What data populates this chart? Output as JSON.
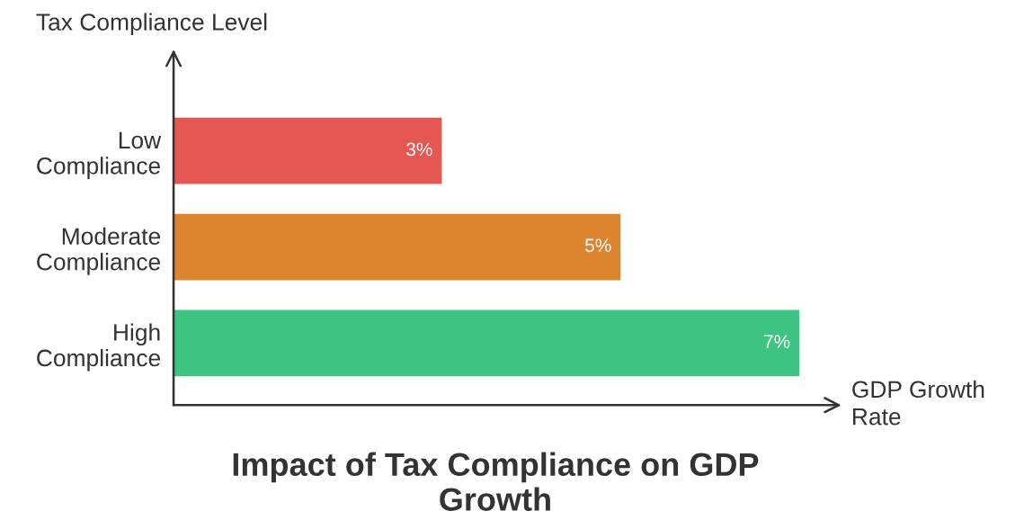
{
  "chart_data": {
    "type": "bar",
    "orientation": "horizontal",
    "title": "Impact of Tax Compliance on GDP Growth",
    "xlabel": "GDP Growth\nRate",
    "ylabel": "Tax Compliance Level",
    "categories": [
      "Low Compliance",
      "Moderate Compliance",
      "High Compliance"
    ],
    "values": [
      3,
      5,
      7
    ],
    "colors": [
      "#e55753",
      "#dd8431",
      "#3dc482"
    ],
    "value_labels": [
      "3%",
      "5%",
      "7%"
    ],
    "tick_labels": "y",
    "grid": false,
    "legend": false
  }
}
